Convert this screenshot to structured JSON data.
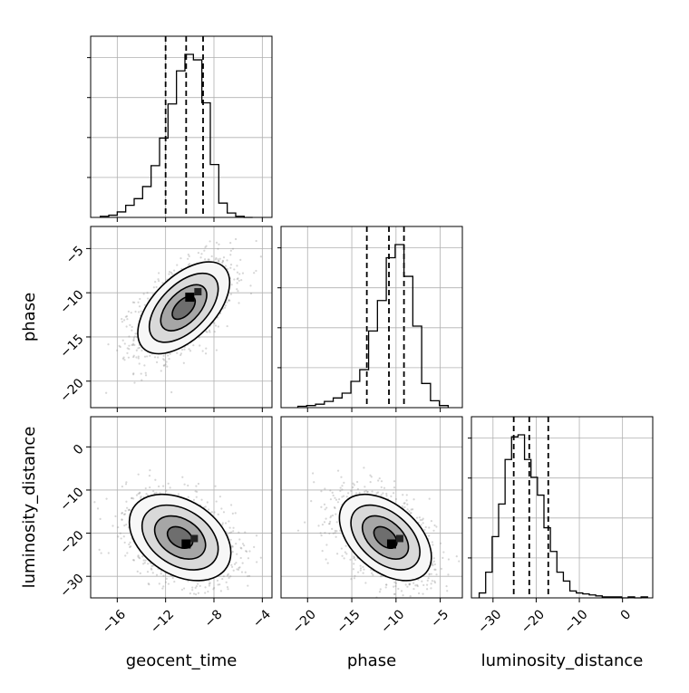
{
  "chart_data": {
    "type": "corner",
    "parameters": [
      {
        "name": "geocent_time",
        "range": [
          -18.2,
          -3.2
        ],
        "ticks": [
          -16,
          -12,
          -8,
          -4
        ],
        "tick_labels": [
          "−16",
          "−12",
          "−8",
          "−4"
        ],
        "quantiles": [
          -12.0,
          -10.3,
          -8.9
        ],
        "histogram": {
          "edges": [
            -17.4,
            -16.7,
            -16.0,
            -15.3,
            -14.6,
            -13.9,
            -13.2,
            -12.5,
            -11.8,
            -11.1,
            -10.4,
            -9.7,
            -9.0,
            -8.3,
            -7.6,
            -6.9,
            -6.2,
            -5.5,
            -4.8
          ],
          "counts": [
            1,
            2,
            5,
            11,
            17,
            28,
            47,
            72,
            103,
            133,
            148,
            143,
            104,
            48,
            13,
            4,
            1,
            0
          ]
        }
      },
      {
        "name": "phase",
        "range": [
          -23.0,
          -2.5
        ],
        "ticks": [
          -20,
          -15,
          -10,
          -5
        ],
        "tick_labels": [
          "−20",
          "−15",
          "−10",
          "−5"
        ],
        "quantiles": [
          -13.3,
          -10.8,
          -9.1
        ],
        "histogram": {
          "edges": [
            -21.1,
            -20.1,
            -19.1,
            -18.1,
            -17.1,
            -16.1,
            -15.1,
            -14.1,
            -13.1,
            -12.1,
            -11.1,
            -10.1,
            -9.1,
            -8.1,
            -7.1,
            -6.1,
            -5.1,
            -4.1
          ],
          "counts": [
            2,
            3,
            5,
            9,
            14,
            21,
            38,
            55,
            111,
            155,
            217,
            236,
            190,
            118,
            35,
            10,
            3
          ]
        }
      },
      {
        "name": "luminosity_distance",
        "range": [
          -35.0,
          7.0
        ],
        "ticks": [
          -30,
          -20,
          -10,
          0
        ],
        "tick_labels": [
          "−30",
          "−20",
          "−10",
          "0"
        ],
        "quantiles": [
          -25.2,
          -21.6,
          -17.2
        ],
        "histogram": {
          "edges": [
            -33.2,
            -31.7,
            -30.2,
            -28.7,
            -27.2,
            -25.7,
            -24.2,
            -22.7,
            -21.2,
            -19.7,
            -18.2,
            -16.7,
            -15.2,
            -13.7,
            -12.2,
            -10.7,
            -9.2,
            -7.7,
            -6.2,
            -4.7,
            -3.2,
            -1.7,
            -0.2,
            1.3,
            2.8,
            4.3,
            5.8
          ],
          "counts": [
            5,
            26,
            62,
            95,
            140,
            163,
            165,
            140,
            122,
            104,
            71,
            47,
            26,
            17,
            7,
            5,
            4,
            3,
            2,
            1,
            1,
            1,
            0,
            1,
            0,
            1
          ]
        }
      }
    ],
    "pairs": [
      {
        "x": "geocent_time",
        "y": "phase",
        "mean": [
          -10.5,
          -11.7
        ],
        "std": [
          1.9,
          2.6
        ],
        "correlation": 0.55,
        "peak": [
          -10.0,
          -10.5
        ]
      },
      {
        "x": "geocent_time",
        "y": "luminosity_distance",
        "mean": [
          -10.8,
          -21.0
        ],
        "std": [
          2.1,
          5.0
        ],
        "correlation": -0.35,
        "peak": [
          -10.3,
          -22.5
        ]
      },
      {
        "x": "phase",
        "y": "luminosity_distance",
        "mean": [
          -11.2,
          -21.0
        ],
        "std": [
          2.6,
          5.0
        ],
        "correlation": -0.45,
        "peak": [
          -10.5,
          -22.5
        ]
      }
    ],
    "grid": true,
    "contour_levels": [
      0.5,
      1.0,
      1.5,
      2.0
    ]
  }
}
